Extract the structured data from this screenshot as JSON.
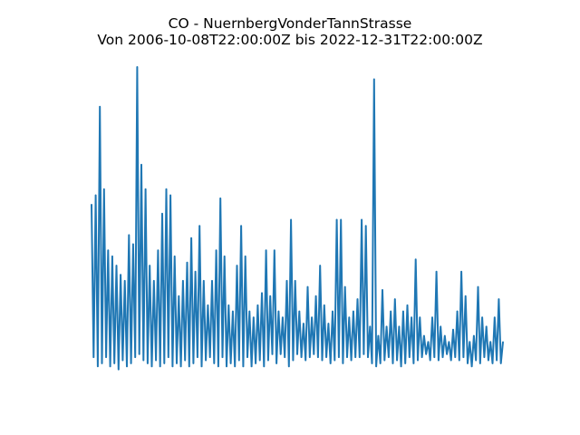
{
  "chart_data": {
    "type": "line",
    "title": "CO - NuernbergVonderTannStrasse",
    "subtitle": "Von 2006-10-08T22:00:00Z bis 2022-12-31T22:00:00Z",
    "x_start": "2006-10-08T22:00:00Z",
    "x_end": "2022-12-31T22:00:00Z",
    "axes_visible": false,
    "grid": false,
    "color": "#1f77b4",
    "values_relative": [
      0.55,
      0.05,
      0.58,
      0.02,
      0.87,
      0.03,
      0.6,
      0.05,
      0.4,
      0.02,
      0.38,
      0.03,
      0.35,
      0.01,
      0.32,
      0.04,
      0.3,
      0.02,
      0.45,
      0.03,
      0.42,
      0.05,
      1.0,
      0.06,
      0.68,
      0.04,
      0.6,
      0.03,
      0.35,
      0.02,
      0.3,
      0.04,
      0.4,
      0.02,
      0.52,
      0.03,
      0.6,
      0.05,
      0.58,
      0.02,
      0.38,
      0.03,
      0.25,
      0.02,
      0.3,
      0.04,
      0.36,
      0.02,
      0.44,
      0.03,
      0.33,
      0.05,
      0.48,
      0.02,
      0.3,
      0.04,
      0.22,
      0.05,
      0.3,
      0.03,
      0.4,
      0.02,
      0.57,
      0.05,
      0.38,
      0.02,
      0.22,
      0.03,
      0.2,
      0.02,
      0.35,
      0.04,
      0.48,
      0.02,
      0.38,
      0.05,
      0.2,
      0.02,
      0.18,
      0.03,
      0.22,
      0.04,
      0.26,
      0.02,
      0.4,
      0.04,
      0.25,
      0.06,
      0.4,
      0.03,
      0.2,
      0.06,
      0.18,
      0.05,
      0.3,
      0.02,
      0.5,
      0.04,
      0.3,
      0.06,
      0.2,
      0.05,
      0.16,
      0.04,
      0.28,
      0.05,
      0.18,
      0.06,
      0.25,
      0.05,
      0.35,
      0.04,
      0.22,
      0.05,
      0.16,
      0.03,
      0.2,
      0.04,
      0.5,
      0.05,
      0.5,
      0.03,
      0.28,
      0.05,
      0.18,
      0.04,
      0.2,
      0.05,
      0.24,
      0.05,
      0.5,
      0.06,
      0.48,
      0.05,
      0.15,
      0.03,
      0.96,
      0.02,
      0.12,
      0.03,
      0.27,
      0.04,
      0.15,
      0.05,
      0.2,
      0.03,
      0.24,
      0.04,
      0.15,
      0.02,
      0.2,
      0.03,
      0.22,
      0.05,
      0.18,
      0.03,
      0.37,
      0.04,
      0.18,
      0.05,
      0.12,
      0.06,
      0.1,
      0.04,
      0.18,
      0.05,
      0.33,
      0.04,
      0.15,
      0.05,
      0.12,
      0.06,
      0.1,
      0.04,
      0.14,
      0.05,
      0.2,
      0.04,
      0.33,
      0.05,
      0.25,
      0.03,
      0.1,
      0.02,
      0.12,
      0.04,
      0.28,
      0.03,
      0.18,
      0.05,
      0.15,
      0.04,
      0.1,
      0.03,
      0.18,
      0.04,
      0.24,
      0.03,
      0.1
    ]
  }
}
